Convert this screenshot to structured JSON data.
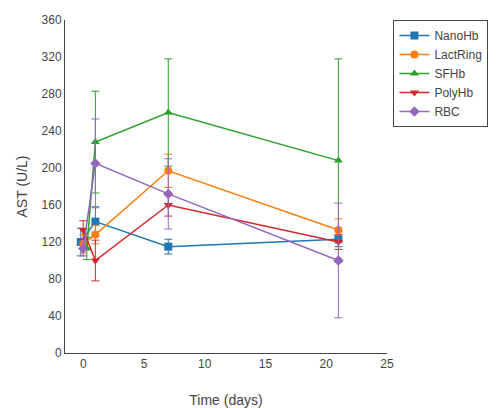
{
  "chart_data": {
    "type": "line",
    "xlabel": "Time (days)",
    "ylabel": "AST (U/L)",
    "xlim": [
      -1.5,
      25
    ],
    "ylim": [
      0,
      360
    ],
    "xticks": [
      0,
      5,
      10,
      15,
      20,
      25
    ],
    "yticks": [
      0,
      40,
      80,
      120,
      160,
      200,
      240,
      280,
      320,
      360
    ],
    "grid": false,
    "legend": "upper right",
    "series": [
      {
        "name": "NanoHb",
        "marker": "square",
        "x": [
          -0.2,
          1,
          7,
          21
        ],
        "values": [
          120,
          142,
          115,
          123
        ],
        "errors": [
          15,
          16,
          8,
          8
        ]
      },
      {
        "name": "LactRing",
        "marker": "circle",
        "x": [
          0.0,
          1,
          7,
          21
        ],
        "values": [
          118,
          128,
          197,
          133
        ],
        "errors": [
          10,
          10,
          18,
          12
        ]
      },
      {
        "name": "SFHb",
        "marker": "triangle-up",
        "x": [
          0.3,
          1,
          7,
          21
        ],
        "values": [
          113,
          228,
          260,
          208
        ],
        "errors": [
          12,
          55,
          58,
          110
        ]
      },
      {
        "name": "PolyHb",
        "marker": "triangle-down",
        "x": [
          0.0,
          1,
          7,
          21
        ],
        "values": [
          133,
          100,
          160,
          120
        ],
        "errors": [
          10,
          22,
          12,
          8
        ]
      },
      {
        "name": "RBC",
        "marker": "diamond",
        "x": [
          0.0,
          1,
          7,
          21
        ],
        "values": [
          113,
          205,
          172,
          100
        ],
        "errors": [
          8,
          48,
          38,
          62
        ]
      }
    ]
  }
}
